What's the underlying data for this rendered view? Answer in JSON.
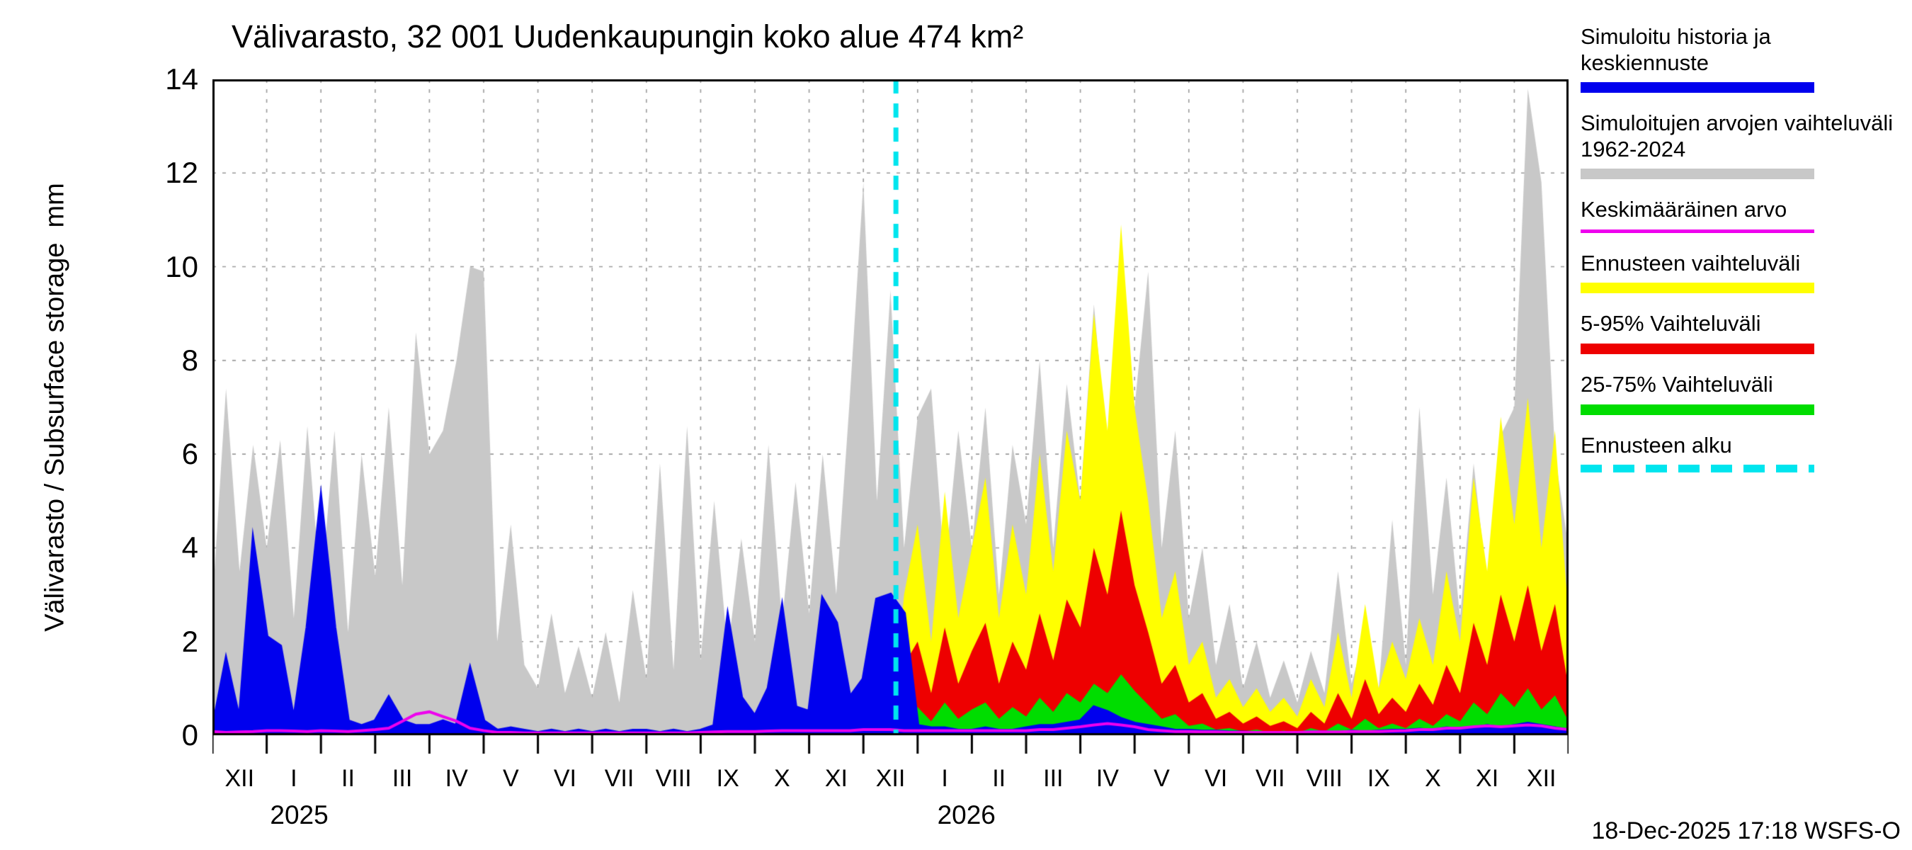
{
  "footer": "18-Dec-2025 17:18 WSFS-O",
  "chart_data": {
    "type": "area",
    "title": "Välivarasto, 32 001 Uudenkaupungin koko alue 474 km²",
    "ylabel": "Välivarasto / Subsurface storage  mm",
    "ylim": [
      0,
      14
    ],
    "yticks": [
      0,
      2,
      4,
      6,
      8,
      10,
      12,
      14
    ],
    "grid": true,
    "legend_position": "right",
    "x_total_months": 25,
    "x_step_months": 0.25,
    "month_labels": [
      "XII",
      "I",
      "II",
      "III",
      "IV",
      "V",
      "VI",
      "VII",
      "VIII",
      "IX",
      "X",
      "XI",
      "XII",
      "I",
      "II",
      "III",
      "IV",
      "V",
      "VI",
      "VII",
      "VIII",
      "IX",
      "X",
      "XI",
      "XII"
    ],
    "year_labels": [
      {
        "text": "2025",
        "month": 1.6
      },
      {
        "text": "2026",
        "month": 13.9
      }
    ],
    "forecast_start": {
      "month": 12.6,
      "color": "#00e5ee",
      "label": "Ennusteen alku"
    },
    "series": [
      {
        "name": "simulated-range-1962-2024",
        "label": "Simuloitujen arvojen vaihteluväli 1962-2024",
        "style": "area",
        "color": "#c8c8c8",
        "x0": 0,
        "values": [
          2.8,
          7.4,
          3.5,
          6.2,
          4.0,
          6.3,
          2.5,
          6.6,
          3.0,
          6.5,
          2.2,
          6.0,
          3.4,
          7.0,
          3.2,
          8.6,
          6.0,
          6.5,
          8.0,
          10.0,
          9.9,
          2.0,
          4.5,
          1.5,
          1.0,
          2.6,
          0.9,
          1.9,
          0.8,
          2.2,
          0.7,
          3.1,
          1.2,
          5.8,
          1.4,
          6.6,
          1.6,
          5.0,
          1.8,
          4.2,
          2.0,
          6.2,
          2.4,
          5.4,
          2.6,
          6.0,
          3.0,
          7.2,
          11.8,
          5.0,
          9.5,
          4.0,
          6.8,
          7.4,
          3.5,
          6.5,
          4.0,
          7.0,
          3.0,
          6.2,
          4.5,
          8.0,
          4.0,
          7.5,
          5.0,
          9.2,
          6.0,
          10.0,
          7.0,
          9.9,
          4.0,
          6.5,
          2.5,
          4.0,
          1.5,
          2.8,
          1.0,
          2.0,
          0.8,
          1.6,
          0.7,
          1.8,
          0.9,
          3.5,
          1.1,
          2.2,
          1.0,
          4.6,
          1.5,
          7.0,
          3.0,
          5.5,
          2.5,
          5.8,
          3.2,
          6.4,
          7.0,
          13.8,
          11.8,
          6.0,
          4.0
        ]
      },
      {
        "name": "forecast-range",
        "label": "Ennusteen vaihteluväli",
        "style": "area",
        "color": "#ffff00",
        "x0": 12.5,
        "values": [
          0,
          3.0,
          4.5,
          2.0,
          5.2,
          2.5,
          4.0,
          5.5,
          2.5,
          4.5,
          3.0,
          6.0,
          3.5,
          6.5,
          5.0,
          9.0,
          6.5,
          10.9,
          7.0,
          5.0,
          2.5,
          3.5,
          1.5,
          2.0,
          0.8,
          1.2,
          0.6,
          1.0,
          0.5,
          0.8,
          0.4,
          1.2,
          0.6,
          2.2,
          0.8,
          2.8,
          1.0,
          2.0,
          1.2,
          2.5,
          1.5,
          3.5,
          2.0,
          5.5,
          3.5,
          6.8,
          4.5,
          7.2,
          4.0,
          6.5,
          2.5
        ]
      },
      {
        "name": "range-5-95",
        "label": "5-95% Vaihteluväli",
        "style": "area",
        "color": "#ee0000",
        "x0": 12.5,
        "values": [
          0,
          1.5,
          2.0,
          0.9,
          2.3,
          1.1,
          1.8,
          2.4,
          1.1,
          2.0,
          1.4,
          2.6,
          1.6,
          2.9,
          2.3,
          4.0,
          3.0,
          4.8,
          3.2,
          2.2,
          1.1,
          1.5,
          0.7,
          0.9,
          0.35,
          0.5,
          0.25,
          0.4,
          0.2,
          0.3,
          0.15,
          0.5,
          0.25,
          0.9,
          0.35,
          1.2,
          0.45,
          0.8,
          0.5,
          1.1,
          0.65,
          1.5,
          0.9,
          2.4,
          1.5,
          3.0,
          2.0,
          3.2,
          1.8,
          2.8,
          1.0
        ]
      },
      {
        "name": "range-25-75",
        "label": "25-75% Vaihteluväli",
        "style": "area",
        "color": "#00dd00",
        "x0": 12.5,
        "values": [
          0,
          0.5,
          0.6,
          0.3,
          0.7,
          0.35,
          0.55,
          0.7,
          0.35,
          0.6,
          0.4,
          0.8,
          0.5,
          0.9,
          0.7,
          1.1,
          0.9,
          1.3,
          0.95,
          0.65,
          0.35,
          0.45,
          0.2,
          0.25,
          0.12,
          0.15,
          0.08,
          0.12,
          0.06,
          0.1,
          0.05,
          0.15,
          0.08,
          0.25,
          0.12,
          0.35,
          0.15,
          0.25,
          0.15,
          0.35,
          0.2,
          0.45,
          0.3,
          0.7,
          0.45,
          0.9,
          0.6,
          1.0,
          0.55,
          0.85,
          0.3
        ]
      },
      {
        "name": "simulated-history-and-median-forecast",
        "label": "Simuloitu historia ja keskiennuste",
        "style": "area",
        "color": "#0000ee",
        "line_width": 5,
        "x0": 0,
        "values": [
          0.1,
          1.6,
          0.3,
          4.1,
          2.1,
          1.9,
          0.3,
          2.3,
          5.0,
          2.3,
          0.3,
          0.2,
          0.3,
          0.8,
          0.3,
          0.2,
          0.2,
          0.3,
          0.2,
          1.4,
          0.3,
          0.1,
          0.15,
          0.1,
          0.05,
          0.1,
          0.05,
          0.1,
          0.05,
          0.1,
          0.05,
          0.1,
          0.1,
          0.05,
          0.1,
          0.05,
          0.1,
          0.2,
          2.5,
          0.8,
          0.4,
          1.0,
          2.7,
          0.6,
          0.5,
          2.9,
          2.4,
          0.8,
          1.2,
          2.9,
          3.0,
          2.6,
          0.2,
          0.15,
          0.15,
          0.1,
          0.1,
          0.15,
          0.1,
          0.1,
          0.15,
          0.2,
          0.2,
          0.25,
          0.3,
          0.6,
          0.5,
          0.35,
          0.25,
          0.2,
          0.15,
          0.1,
          0.1,
          0.08,
          0.08,
          0.06,
          0.06,
          0.05,
          0.05,
          0.05,
          0.05,
          0.06,
          0.06,
          0.05,
          0.08,
          0.06,
          0.08,
          0.1,
          0.1,
          0.12,
          0.1,
          0.15,
          0.12,
          0.15,
          0.2,
          0.15,
          0.2,
          0.25,
          0.2,
          0.15,
          0.1
        ]
      },
      {
        "name": "mean-value",
        "label": "Keskimääräinen arvo",
        "style": "line",
        "color": "#ee00ee",
        "line_width": 4,
        "x0": 0,
        "values": [
          0.08,
          0.06,
          0.07,
          0.08,
          0.1,
          0.1,
          0.09,
          0.08,
          0.1,
          0.09,
          0.08,
          0.1,
          0.12,
          0.15,
          0.3,
          0.45,
          0.5,
          0.4,
          0.3,
          0.15,
          0.1,
          0.06,
          0.06,
          0.05,
          0.05,
          0.05,
          0.05,
          0.05,
          0.05,
          0.05,
          0.05,
          0.05,
          0.05,
          0.05,
          0.05,
          0.05,
          0.06,
          0.07,
          0.08,
          0.08,
          0.08,
          0.09,
          0.1,
          0.1,
          0.1,
          0.1,
          0.1,
          0.1,
          0.12,
          0.12,
          0.12,
          0.1,
          0.1,
          0.1,
          0.1,
          0.1,
          0.1,
          0.1,
          0.1,
          0.1,
          0.1,
          0.12,
          0.12,
          0.15,
          0.18,
          0.22,
          0.25,
          0.22,
          0.18,
          0.12,
          0.1,
          0.08,
          0.08,
          0.07,
          0.07,
          0.06,
          0.06,
          0.06,
          0.06,
          0.06,
          0.06,
          0.07,
          0.07,
          0.07,
          0.08,
          0.08,
          0.08,
          0.09,
          0.1,
          0.12,
          0.12,
          0.15,
          0.15,
          0.18,
          0.2,
          0.18,
          0.2,
          0.22,
          0.2,
          0.15,
          0.12
        ]
      }
    ],
    "legend": [
      {
        "name": "sim-history-median",
        "label": "Simuloitu historia ja keskiennuste",
        "color": "#0000ee",
        "kind": "band"
      },
      {
        "name": "sim-range",
        "label": "Simuloitujen arvojen vaihteluväli 1962-2024",
        "color": "#c8c8c8",
        "kind": "band"
      },
      {
        "name": "mean-value",
        "label": "Keskimääräinen arvo",
        "color": "#ee00ee",
        "kind": "line"
      },
      {
        "name": "forecast-range",
        "label": "Ennusteen vaihteluväli",
        "color": "#ffff00",
        "kind": "band"
      },
      {
        "name": "range-5-95",
        "label": "5-95% Vaihteluväli",
        "color": "#ee0000",
        "kind": "band"
      },
      {
        "name": "range-25-75",
        "label": "25-75% Vaihteluväli",
        "color": "#00dd00",
        "kind": "band"
      },
      {
        "name": "forecast-start",
        "label": "Ennusteen alku",
        "color": "#00e5ee",
        "kind": "dashed"
      }
    ]
  }
}
